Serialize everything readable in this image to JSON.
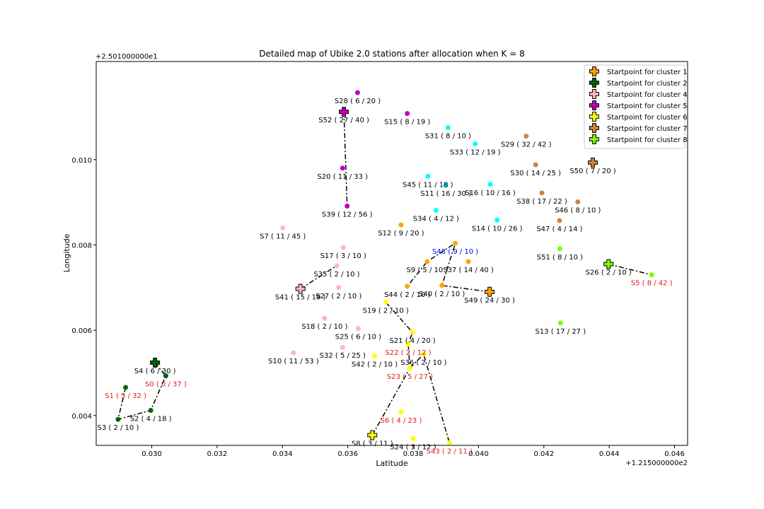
{
  "chart_data": {
    "type": "scatter",
    "title": "Detailed map of Ubike 2.0 stations after allocation when K = 8",
    "xlabel": "Latitude",
    "ylabel": "Longitude",
    "x_offset_label": "+1.215000000e2",
    "y_offset_label": "+2.501000000e1",
    "x_ticks": [
      "0.030",
      "0.032",
      "0.034",
      "0.036",
      "0.038",
      "0.040",
      "0.042",
      "0.044",
      "0.046"
    ],
    "y_ticks": [
      "0.004",
      "0.006",
      "0.008",
      "0.010"
    ],
    "xlim": [
      0.0283,
      0.0464
    ],
    "ylim": [
      0.0033,
      0.0123
    ],
    "grid": false,
    "legend_position": "top-right",
    "colors": {
      "cluster1": "#ffa500",
      "cluster2": "#006400",
      "cluster3": "#00ffff",
      "cluster4": "#ffb6c1",
      "cluster5": "#bf00bf",
      "cluster6": "#ffff00",
      "cluster7": "#cd853f",
      "cluster8": "#7cfc00",
      "label_black": "#000000",
      "label_red": "#e41a1c",
      "label_blue": "#0000ff"
    },
    "legend": [
      {
        "label": "Startpoint for cluster 1",
        "color": "#ffa500"
      },
      {
        "label": "Startpoint for cluster 2",
        "color": "#006400"
      },
      {
        "label": "Startpoint for cluster 4",
        "color": "#ffb6c1"
      },
      {
        "label": "Startpoint for cluster 5",
        "color": "#bf00bf"
      },
      {
        "label": "Startpoint for cluster 6",
        "color": "#ffff00"
      },
      {
        "label": "Startpoint for cluster 7",
        "color": "#cd853f"
      },
      {
        "label": "Startpoint for cluster 8",
        "color": "#7cfc00"
      }
    ],
    "stations": [
      {
        "id": "S0",
        "label": "S0 ( 0 / 37 )",
        "x": 0.03043,
        "y": 0.00493,
        "cluster": "cluster2",
        "label_color": "label_red"
      },
      {
        "id": "S1",
        "label": "S1 ( 5 / 32 )",
        "x": 0.0292,
        "y": 0.00466,
        "cluster": "cluster2",
        "label_color": "label_red"
      },
      {
        "id": "S2",
        "label": "S2 ( 4 / 18 )",
        "x": 0.02997,
        "y": 0.00412,
        "cluster": "cluster2",
        "label_color": "label_black"
      },
      {
        "id": "S3",
        "label": "S3 ( 2 / 10 )",
        "x": 0.02897,
        "y": 0.00391,
        "cluster": "cluster2",
        "label_color": "label_black"
      },
      {
        "id": "S4",
        "label": "S4 ( 6 / 30 )",
        "x": 0.0301,
        "y": 0.00524,
        "cluster": "cluster2",
        "label_color": "label_black",
        "start": true
      },
      {
        "id": "S5",
        "label": "S5 ( 8 / 42 )",
        "x": 0.0453,
        "y": 0.0073,
        "cluster": "cluster8",
        "label_color": "label_red"
      },
      {
        "id": "S6",
        "label": "S6 ( 4 / 23 )",
        "x": 0.03763,
        "y": 0.00408,
        "cluster": "cluster6",
        "label_color": "label_red"
      },
      {
        "id": "S7",
        "label": "S7 ( 11 / 45 )",
        "x": 0.03401,
        "y": 0.0084,
        "cluster": "cluster4",
        "label_color": "label_black"
      },
      {
        "id": "S8",
        "label": "S8 ( 3 / 11 )",
        "x": 0.03675,
        "y": 0.00354,
        "cluster": "cluster6",
        "label_color": "label_black",
        "start": true
      },
      {
        "id": "S9",
        "label": "S9 ( 5 / 10 )",
        "x": 0.03843,
        "y": 0.00761,
        "cluster": "cluster1",
        "label_color": "label_black"
      },
      {
        "id": "S10",
        "label": "S10 ( 11 / 53 )",
        "x": 0.03434,
        "y": 0.00547,
        "cluster": "cluster4",
        "label_color": "label_black"
      },
      {
        "id": "S11",
        "label": "S11 ( 16 / 30 )",
        "x": 0.039,
        "y": 0.0094,
        "cluster": "cluster3",
        "label_color": "label_black"
      },
      {
        "id": "S12",
        "label": "S12 ( 9 / 20 )",
        "x": 0.03763,
        "y": 0.00847,
        "cluster": "cluster1",
        "label_color": "label_black"
      },
      {
        "id": "S13",
        "label": "S13 ( 17 / 27 )",
        "x": 0.04251,
        "y": 0.00617,
        "cluster": "cluster8",
        "label_color": "label_black"
      },
      {
        "id": "S14",
        "label": "S14 ( 10 / 26 )",
        "x": 0.04057,
        "y": 0.00858,
        "cluster": "cluster3",
        "label_color": "label_black"
      },
      {
        "id": "S15",
        "label": "S15 ( 8 / 19 )",
        "x": 0.03782,
        "y": 0.01108,
        "cluster": "cluster5",
        "label_color": "label_black"
      },
      {
        "id": "S16",
        "label": "S16 ( 10 / 16 )",
        "x": 0.04036,
        "y": 0.00942,
        "cluster": "cluster3",
        "label_color": "label_black"
      },
      {
        "id": "S17",
        "label": "S17 ( 3 / 10 )",
        "x": 0.03586,
        "y": 0.00794,
        "cluster": "cluster4",
        "label_color": "label_black"
      },
      {
        "id": "S18",
        "label": "S18 ( 2 / 10 )",
        "x": 0.03529,
        "y": 0.00628,
        "cluster": "cluster4",
        "label_color": "label_black"
      },
      {
        "id": "S19",
        "label": "S19 ( 2 / 10 )",
        "x": 0.03716,
        "y": 0.00666,
        "cluster": "cluster6",
        "label_color": "label_black"
      },
      {
        "id": "S20",
        "label": "S20 ( 11 / 33 )",
        "x": 0.03584,
        "y": 0.0098,
        "cluster": "cluster5",
        "label_color": "label_black"
      },
      {
        "id": "S21",
        "label": "S21 ( 4 / 20 )",
        "x": 0.03798,
        "y": 0.00595,
        "cluster": "cluster6",
        "label_color": "label_black"
      },
      {
        "id": "S22",
        "label": "S22 ( 2 / 12 )",
        "x": 0.03785,
        "y": 0.00567,
        "cluster": "cluster6",
        "label_color": "label_red"
      },
      {
        "id": "S23",
        "label": "S23 ( 5 / 27 )",
        "x": 0.0379,
        "y": 0.00511,
        "cluster": "cluster6",
        "label_color": "label_red"
      },
      {
        "id": "S24",
        "label": "S24 ( 3 / 12 )",
        "x": 0.038,
        "y": 0.00346,
        "cluster": "cluster6",
        "label_color": "label_black"
      },
      {
        "id": "S25",
        "label": "S25 ( 6 / 10 )",
        "x": 0.03632,
        "y": 0.00604,
        "cluster": "cluster4",
        "label_color": "label_black"
      },
      {
        "id": "S26",
        "label": "S26 ( 2 / 10 )",
        "x": 0.04398,
        "y": 0.00755,
        "cluster": "cluster8",
        "label_color": "label_black",
        "start": true
      },
      {
        "id": "S27",
        "label": "S27 ( 2 / 10 )",
        "x": 0.03572,
        "y": 0.007,
        "cluster": "cluster4",
        "label_color": "label_black"
      },
      {
        "id": "S28",
        "label": "S28 ( 6 / 20 )",
        "x": 0.0363,
        "y": 0.01157,
        "cluster": "cluster5",
        "label_color": "label_black"
      },
      {
        "id": "S29",
        "label": "S29 ( 32 / 42 )",
        "x": 0.04146,
        "y": 0.01055,
        "cluster": "cluster7",
        "label_color": "label_black"
      },
      {
        "id": "S30",
        "label": "S30 ( 14 / 25 )",
        "x": 0.04175,
        "y": 0.00988,
        "cluster": "cluster7",
        "label_color": "label_black"
      },
      {
        "id": "S31",
        "label": "S31 ( 8 / 10 )",
        "x": 0.03907,
        "y": 0.01075,
        "cluster": "cluster3",
        "label_color": "label_black"
      },
      {
        "id": "S32",
        "label": "S32 ( 5 / 25 )",
        "x": 0.03584,
        "y": 0.0056,
        "cluster": "cluster4",
        "label_color": "label_black"
      },
      {
        "id": "S33",
        "label": "S33 ( 12 / 19 )",
        "x": 0.0399,
        "y": 0.01037,
        "cluster": "cluster3",
        "label_color": "label_black"
      },
      {
        "id": "S34",
        "label": "S34 ( 4 / 12 )",
        "x": 0.0387,
        "y": 0.00881,
        "cluster": "cluster3",
        "label_color": "label_black"
      },
      {
        "id": "S35",
        "label": "S35 ( 2 / 10 )",
        "x": 0.03566,
        "y": 0.00751,
        "cluster": "cluster4",
        "label_color": "label_black"
      },
      {
        "id": "S36",
        "label": "S36 ( 2 / 10 )",
        "x": 0.03832,
        "y": 0.00544,
        "cluster": "cluster6",
        "label_color": "label_black"
      },
      {
        "id": "S37",
        "label": "S37 ( 14 / 40 )",
        "x": 0.03969,
        "y": 0.00761,
        "cluster": "cluster1",
        "label_color": "label_black"
      },
      {
        "id": "S38",
        "label": "S38 ( 17 / 22 )",
        "x": 0.04194,
        "y": 0.00922,
        "cluster": "cluster7",
        "label_color": "label_black"
      },
      {
        "id": "S39",
        "label": "S39 ( 12 / 56 )",
        "x": 0.03598,
        "y": 0.00891,
        "cluster": "cluster5",
        "label_color": "label_black"
      },
      {
        "id": "S40",
        "label": "S40 ( 2 / 10 )",
        "x": 0.03888,
        "y": 0.00705,
        "cluster": "cluster1",
        "label_color": "label_black"
      },
      {
        "id": "S41",
        "label": "S41 ( 15 / 19 )",
        "x": 0.03455,
        "y": 0.00697,
        "cluster": "cluster4",
        "label_color": "label_black",
        "start": true
      },
      {
        "id": "S42",
        "label": "S42 ( 2 / 10 )",
        "x": 0.03682,
        "y": 0.0054,
        "cluster": "cluster6",
        "label_color": "label_black"
      },
      {
        "id": "S43",
        "label": "S43 ( 2 / 11 )",
        "x": 0.03911,
        "y": 0.00336,
        "cluster": "cluster6",
        "label_color": "label_red"
      },
      {
        "id": "S44",
        "label": "S44 ( 2 / 10 )",
        "x": 0.03782,
        "y": 0.00703,
        "cluster": "cluster1",
        "label_color": "label_black"
      },
      {
        "id": "S45",
        "label": "S45 ( 11 / 18 )",
        "x": 0.03845,
        "y": 0.00961,
        "cluster": "cluster3",
        "label_color": "label_black"
      },
      {
        "id": "S46",
        "label": "S46 ( 8 / 10 )",
        "x": 0.04304,
        "y": 0.00901,
        "cluster": "cluster7",
        "label_color": "label_black"
      },
      {
        "id": "S47",
        "label": "S47 ( 4 / 14 )",
        "x": 0.04248,
        "y": 0.00857,
        "cluster": "cluster7",
        "label_color": "label_black"
      },
      {
        "id": "S48",
        "label": "S48 ( 9 / 10 )",
        "x": 0.03929,
        "y": 0.00804,
        "cluster": "cluster1",
        "label_color": "label_blue"
      },
      {
        "id": "S49",
        "label": "S49 ( 24 / 30 )",
        "x": 0.04034,
        "y": 0.0069,
        "cluster": "cluster1",
        "label_color": "label_black",
        "start": true
      },
      {
        "id": "S50",
        "label": "S50 ( 7 / 20 )",
        "x": 0.0435,
        "y": 0.00993,
        "cluster": "cluster7",
        "label_color": "label_black",
        "start": true
      },
      {
        "id": "S51",
        "label": "S51 ( 8 / 10 )",
        "x": 0.04249,
        "y": 0.00791,
        "cluster": "cluster8",
        "label_color": "label_black"
      },
      {
        "id": "S52",
        "label": "S52 ( 27 / 40 )",
        "x": 0.03588,
        "y": 0.01112,
        "cluster": "cluster5",
        "label_color": "label_black",
        "start": true
      }
    ],
    "routes": [
      [
        "S4",
        "S0",
        "S2",
        "S3",
        "S1"
      ],
      [
        "S41",
        "S35"
      ],
      [
        "S52",
        "S39"
      ],
      [
        "S49",
        "S40",
        "S48",
        "S9",
        "S44"
      ],
      [
        "S8",
        "S23",
        "S22",
        "S21",
        "S19"
      ],
      [
        "S23",
        "S36",
        "S43"
      ],
      [
        "S26",
        "S5"
      ]
    ]
  }
}
